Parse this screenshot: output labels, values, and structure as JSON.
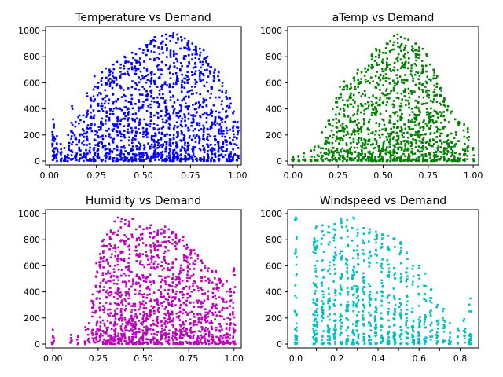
{
  "chart_data": [
    {
      "type": "scatter",
      "title": "Temperature vs Demand",
      "xlabel": "",
      "ylabel": "",
      "xlim": [
        -0.02,
        1.02
      ],
      "ylim": [
        -30,
        1030
      ],
      "x_ticks": [
        0.0,
        0.25,
        0.5,
        0.75,
        1.0
      ],
      "x_tick_labels": [
        "0.00",
        "0.25",
        "0.50",
        "0.75",
        "1.00"
      ],
      "y_ticks": [
        0,
        200,
        400,
        600,
        800,
        1000
      ],
      "y_tick_labels": [
        "0",
        "200",
        "400",
        "600",
        "800",
        "1000"
      ],
      "color": "#0000ff",
      "grid": false,
      "legend": "none",
      "x": [
        0.02,
        0.02,
        0.03,
        0.04,
        0.06,
        0.06,
        0.08,
        0.1,
        0.12,
        0.14,
        0.16,
        0.18,
        0.2,
        0.22,
        0.24,
        0.26,
        0.28,
        0.3,
        0.32,
        0.34,
        0.36,
        0.38,
        0.4,
        0.42,
        0.44,
        0.46,
        0.48,
        0.5,
        0.52,
        0.54,
        0.56,
        0.58,
        0.6,
        0.62,
        0.64,
        0.66,
        0.68,
        0.7,
        0.72,
        0.74,
        0.76,
        0.78,
        0.8,
        0.82,
        0.84,
        0.86,
        0.88,
        0.9,
        0.92,
        0.94,
        0.96,
        0.98,
        1.0
      ],
      "y": [
        320,
        180,
        170,
        190,
        60,
        130,
        100,
        200,
        420,
        300,
        350,
        350,
        520,
        480,
        650,
        600,
        680,
        710,
        700,
        740,
        760,
        740,
        800,
        760,
        830,
        820,
        860,
        850,
        890,
        920,
        950,
        870,
        960,
        970,
        960,
        980,
        970,
        950,
        940,
        920,
        900,
        880,
        860,
        850,
        800,
        720,
        700,
        680,
        600,
        540,
        480,
        380,
        300
      ]
    },
    {
      "type": "scatter",
      "title": "aTemp vs Demand",
      "xlabel": "",
      "ylabel": "",
      "xlim": [
        -0.03,
        1.03
      ],
      "ylim": [
        -30,
        1030
      ],
      "x_ticks": [
        0.0,
        0.25,
        0.5,
        0.75,
        1.0
      ],
      "x_tick_labels": [
        "0.00",
        "0.25",
        "0.50",
        "0.75",
        "1.00"
      ],
      "y_ticks": [
        0,
        200,
        400,
        600,
        800,
        1000
      ],
      "y_tick_labels": [
        "0",
        "200",
        "400",
        "600",
        "800",
        "1000"
      ],
      "color": "#008000",
      "grid": false,
      "legend": "none",
      "x": [
        0.0,
        0.03,
        0.06,
        0.1,
        0.12,
        0.14,
        0.16,
        0.18,
        0.2,
        0.22,
        0.24,
        0.26,
        0.28,
        0.3,
        0.32,
        0.34,
        0.36,
        0.38,
        0.4,
        0.42,
        0.44,
        0.46,
        0.48,
        0.5,
        0.52,
        0.54,
        0.56,
        0.58,
        0.6,
        0.62,
        0.64,
        0.66,
        0.68,
        0.7,
        0.72,
        0.74,
        0.76,
        0.78,
        0.8,
        0.82,
        0.84,
        0.86,
        0.88,
        0.9,
        0.92,
        0.95,
        0.97,
        1.0
      ],
      "y": [
        30,
        40,
        60,
        80,
        110,
        120,
        220,
        260,
        310,
        400,
        480,
        570,
        610,
        580,
        590,
        640,
        700,
        680,
        710,
        730,
        820,
        860,
        850,
        830,
        900,
        920,
        960,
        970,
        950,
        940,
        930,
        880,
        900,
        870,
        860,
        820,
        740,
        700,
        650,
        560,
        480,
        420,
        380,
        320,
        300,
        280,
        250,
        100
      ]
    },
    {
      "type": "scatter",
      "title": "Humidity vs Demand",
      "xlabel": "",
      "ylabel": "",
      "xlim": [
        -0.04,
        1.04
      ],
      "ylim": [
        -30,
        1030
      ],
      "x_ticks": [
        0.0,
        0.25,
        0.5,
        0.75,
        1.0
      ],
      "x_tick_labels": [
        "0.00",
        "0.25",
        "0.50",
        "0.75",
        "1.00"
      ],
      "y_ticks": [
        0,
        200,
        400,
        600,
        800,
        1000
      ],
      "y_tick_labels": [
        "0",
        "200",
        "400",
        "600",
        "800",
        "1000"
      ],
      "color": "#bf00bf",
      "grid": false,
      "legend": "none",
      "x": [
        0.0,
        0.0,
        0.1,
        0.14,
        0.18,
        0.2,
        0.22,
        0.24,
        0.26,
        0.28,
        0.3,
        0.32,
        0.34,
        0.36,
        0.38,
        0.4,
        0.42,
        0.44,
        0.46,
        0.48,
        0.5,
        0.52,
        0.54,
        0.56,
        0.58,
        0.6,
        0.62,
        0.64,
        0.66,
        0.68,
        0.7,
        0.72,
        0.74,
        0.76,
        0.78,
        0.8,
        0.82,
        0.84,
        0.86,
        0.88,
        0.9,
        0.92,
        0.94,
        0.96,
        0.98,
        1.0
      ],
      "y": [
        110,
        60,
        70,
        60,
        130,
        160,
        380,
        620,
        690,
        800,
        840,
        870,
        940,
        970,
        960,
        950,
        940,
        960,
        880,
        900,
        880,
        890,
        910,
        860,
        870,
        880,
        900,
        880,
        860,
        840,
        800,
        820,
        760,
        720,
        720,
        680,
        640,
        600,
        580,
        560,
        560,
        500,
        460,
        480,
        420,
        580
      ]
    },
    {
      "type": "scatter",
      "title": "Windspeed vs Demand",
      "xlabel": "",
      "ylabel": "",
      "xlim": [
        -0.04,
        0.89
      ],
      "ylim": [
        -30,
        1030
      ],
      "x_ticks": [
        0.0,
        0.1,
        0.2,
        0.3,
        0.4,
        0.5,
        0.6,
        0.7,
        0.8
      ],
      "x_tick_labels": [
        "0.0",
        "",
        "0.2",
        "",
        "0.4",
        "",
        "0.6",
        "",
        "0.8"
      ],
      "y_ticks": [
        0,
        200,
        400,
        600,
        800,
        1000
      ],
      "y_tick_labels": [
        "0",
        "200",
        "400",
        "600",
        "800",
        "1000"
      ],
      "color": "#00bfbf",
      "grid": false,
      "legend": "none",
      "x": [
        0.0,
        0.09,
        0.1,
        0.13,
        0.16,
        0.19,
        0.22,
        0.25,
        0.28,
        0.3,
        0.33,
        0.36,
        0.39,
        0.42,
        0.45,
        0.48,
        0.51,
        0.54,
        0.57,
        0.6,
        0.63,
        0.66,
        0.69,
        0.72,
        0.75,
        0.79,
        0.82,
        0.85
      ],
      "y": [
        970,
        810,
        900,
        910,
        900,
        920,
        960,
        950,
        970,
        880,
        890,
        880,
        860,
        840,
        830,
        810,
        780,
        700,
        600,
        600,
        540,
        420,
        300,
        270,
        160,
        120,
        190,
        350
      ]
    }
  ]
}
